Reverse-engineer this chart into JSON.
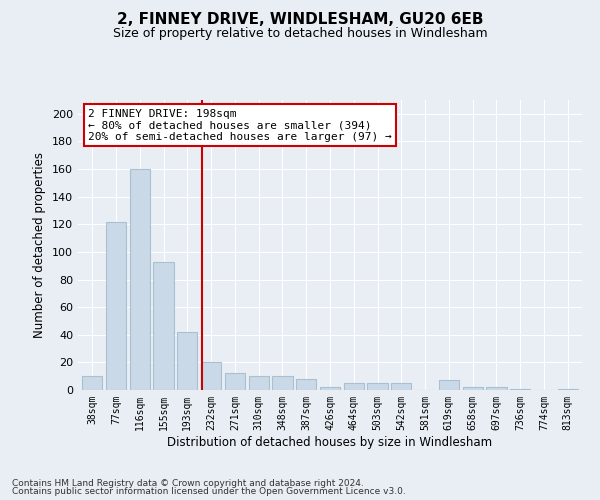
{
  "title1": "2, FINNEY DRIVE, WINDLESHAM, GU20 6EB",
  "title2": "Size of property relative to detached houses in Windlesham",
  "xlabel": "Distribution of detached houses by size in Windlesham",
  "ylabel": "Number of detached properties",
  "categories": [
    "38sqm",
    "77sqm",
    "116sqm",
    "155sqm",
    "193sqm",
    "232sqm",
    "271sqm",
    "310sqm",
    "348sqm",
    "387sqm",
    "426sqm",
    "464sqm",
    "503sqm",
    "542sqm",
    "581sqm",
    "619sqm",
    "658sqm",
    "697sqm",
    "736sqm",
    "774sqm",
    "813sqm"
  ],
  "values": [
    10,
    122,
    160,
    93,
    42,
    20,
    12,
    10,
    10,
    8,
    2,
    5,
    5,
    5,
    0,
    7,
    2,
    2,
    1,
    0,
    1
  ],
  "bar_color": "#c9d9e8",
  "bar_edge_color": "#aabfcf",
  "vline_x_index": 4.62,
  "vline_color": "#cc0000",
  "annotation_text": "2 FINNEY DRIVE: 198sqm\n← 80% of detached houses are smaller (394)\n20% of semi-detached houses are larger (97) →",
  "annotation_box_color": "#ffffff",
  "annotation_box_edge_color": "#cc0000",
  "bg_color": "#e8eef4",
  "plot_bg_color": "#e8eef4",
  "grid_color": "#ffffff",
  "ylim": [
    0,
    210
  ],
  "yticks": [
    0,
    20,
    40,
    60,
    80,
    100,
    120,
    140,
    160,
    180,
    200
  ],
  "footer1": "Contains HM Land Registry data © Crown copyright and database right 2024.",
  "footer2": "Contains public sector information licensed under the Open Government Licence v3.0."
}
